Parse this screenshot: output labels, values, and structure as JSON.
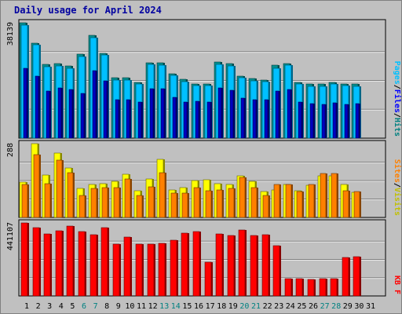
{
  "title": "Daily usage for April 2024",
  "chart_data": [
    {
      "type": "bar",
      "panel": "top",
      "ylabel_max": "38139",
      "ymax": 38139,
      "categories": [
        "1",
        "2",
        "3",
        "4",
        "5",
        "6",
        "7",
        "8",
        "9",
        "10",
        "11",
        "12",
        "13",
        "14",
        "15",
        "16",
        "17",
        "18",
        "19",
        "20",
        "21",
        "22",
        "23",
        "24",
        "25",
        "26",
        "27",
        "28",
        "29",
        "30"
      ],
      "legend": [
        {
          "text": "Hits",
          "color": "#008080"
        },
        {
          "text": "Files",
          "color": "#0000ff"
        },
        {
          "text": "Pages",
          "color": "#00c0ff"
        }
      ],
      "legend_separator": "/",
      "series": [
        {
          "name": "Hits",
          "color": "#009090",
          "values": [
            38139,
            31500,
            24300,
            24700,
            23900,
            27800,
            33900,
            28100,
            19900,
            19900,
            18500,
            25000,
            24900,
            21400,
            19500,
            18000,
            18000,
            25200,
            24600,
            20600,
            19600,
            19300,
            24000,
            24700,
            18500,
            17800,
            17900,
            18500,
            18000,
            17900
          ]
        },
        {
          "name": "Files",
          "color": "#00c0ff",
          "values": [
            37400,
            30800,
            23500,
            23900,
            23100,
            27000,
            33200,
            27400,
            19200,
            19200,
            17800,
            24300,
            24200,
            20700,
            18800,
            17300,
            17300,
            24500,
            23900,
            19900,
            18900,
            18600,
            23200,
            24000,
            17800,
            17100,
            17200,
            17800,
            17300,
            17200
          ]
        },
        {
          "name": "Pages",
          "color": "#0000c0",
          "values": [
            23000,
            20600,
            15600,
            16700,
            16100,
            14700,
            22200,
            18900,
            12800,
            12600,
            12000,
            16300,
            16300,
            13600,
            12000,
            12200,
            12000,
            16500,
            15900,
            13300,
            12700,
            12600,
            15500,
            16000,
            12000,
            11300,
            11200,
            11600,
            11200,
            11400
          ]
        }
      ]
    },
    {
      "type": "bar",
      "panel": "middle",
      "ylabel_max": "288",
      "ymax": 288,
      "legend": [
        {
          "text": "Visits",
          "color": "#c0c000"
        },
        {
          "text": "Sites",
          "color": "#ff8000"
        }
      ],
      "legend_separator": "/",
      "series": [
        {
          "name": "Visits",
          "color": "#ffff00",
          "values": [
            138,
            288,
            166,
            250,
            192,
            113,
            130,
            131,
            140,
            170,
            104,
            151,
            226,
            108,
            117,
            143,
            147,
            131,
            129,
            163,
            142,
            100,
            107,
            128,
            103,
            127,
            163,
            162,
            128,
            99
          ]
        },
        {
          "name": "Sites",
          "color": "#ff8000",
          "values": [
            128,
            244,
            131,
            223,
            176,
            87,
            112,
            117,
            115,
            149,
            86,
            119,
            176,
            95,
            96,
            115,
            105,
            107,
            113,
            157,
            115,
            87,
            128,
            128,
            102,
            129,
            173,
            171,
            104,
            101
          ]
        }
      ]
    },
    {
      "type": "bar",
      "panel": "bottom",
      "ylabel_max": "441107",
      "ymax": 441107,
      "legend": [
        {
          "text": "KB F",
          "color": "#ff0000"
        }
      ],
      "series": [
        {
          "name": "KB F",
          "color": "#ff0000",
          "values": [
            441107,
            412000,
            377000,
            395000,
            420000,
            391000,
            371000,
            415000,
            311000,
            358000,
            312000,
            312000,
            318000,
            336000,
            378000,
            388000,
            205000,
            373000,
            363000,
            398000,
            366000,
            368000,
            305000,
            103000,
            103000,
            100000,
            102000,
            105000,
            232000,
            235000
          ]
        }
      ]
    }
  ],
  "day_colors": {
    "weekday": "#000000",
    "weekend": "#008080"
  },
  "day_labels": [
    {
      "d": "1",
      "weekend": false
    },
    {
      "d": "2",
      "weekend": false
    },
    {
      "d": "3",
      "weekend": false
    },
    {
      "d": "4",
      "weekend": false
    },
    {
      "d": "5",
      "weekend": false
    },
    {
      "d": "6",
      "weekend": true
    },
    {
      "d": "7",
      "weekend": true
    },
    {
      "d": "8",
      "weekend": false
    },
    {
      "d": "9",
      "weekend": false
    },
    {
      "d": "10",
      "weekend": false
    },
    {
      "d": "11",
      "weekend": false
    },
    {
      "d": "12",
      "weekend": false
    },
    {
      "d": "13",
      "weekend": true
    },
    {
      "d": "14",
      "weekend": true
    },
    {
      "d": "15",
      "weekend": false
    },
    {
      "d": "16",
      "weekend": false
    },
    {
      "d": "17",
      "weekend": false
    },
    {
      "d": "18",
      "weekend": false
    },
    {
      "d": "19",
      "weekend": false
    },
    {
      "d": "20",
      "weekend": true
    },
    {
      "d": "21",
      "weekend": true
    },
    {
      "d": "22",
      "weekend": false
    },
    {
      "d": "23",
      "weekend": false
    },
    {
      "d": "24",
      "weekend": false
    },
    {
      "d": "25",
      "weekend": false
    },
    {
      "d": "26",
      "weekend": false
    },
    {
      "d": "27",
      "weekend": true
    },
    {
      "d": "28",
      "weekend": true
    },
    {
      "d": "29",
      "weekend": false
    },
    {
      "d": "30",
      "weekend": false
    },
    {
      "d": "31",
      "weekend": false
    }
  ]
}
